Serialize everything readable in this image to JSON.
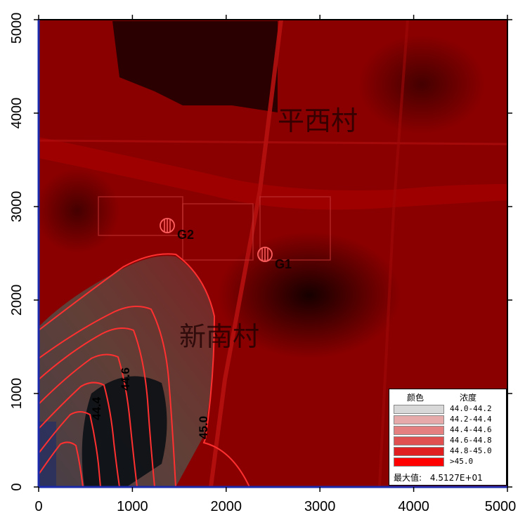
{
  "axes": {
    "x_ticks": [
      "0",
      "1000",
      "2000",
      "3000",
      "4000",
      "5000"
    ],
    "y_ticks": [
      "0",
      "1000",
      "2000",
      "3000",
      "4000",
      "5000"
    ]
  },
  "map_labels": {
    "village_north": "平西村",
    "village_south": "新南村",
    "gauge_1": "G1",
    "gauge_2": "G2"
  },
  "contour_labels": [
    "44.6",
    "44.4",
    "45.0"
  ],
  "legend": {
    "color_header": "颜色",
    "value_header": "浓度",
    "ranges": [
      {
        "label": "44.0-44.2",
        "color": "#d8d8d8"
      },
      {
        "label": "44.2-44.4",
        "color": "#e6aaaa"
      },
      {
        "label": "44.4-44.6",
        "color": "#e58080"
      },
      {
        "label": "44.6-44.8",
        "color": "#e05050"
      },
      {
        "label": "44.8-45.0",
        "color": "#e02020"
      },
      {
        "label": ">45.0",
        "color": "#ff0000"
      }
    ],
    "max_label": "最大值:",
    "max_value": "4.5127E+01"
  },
  "chart_data": {
    "type": "heatmap",
    "xlim": [
      0,
      5000
    ],
    "ylim": [
      0,
      5000
    ],
    "contour_levels": [
      44.0,
      44.2,
      44.4,
      44.6,
      44.8,
      45.0
    ],
    "max_value": 45.127
  },
  "colors": {
    "base_map": "#8a0000",
    "contour_line": "#ff3030",
    "plume_dark": "#0a0f14"
  }
}
